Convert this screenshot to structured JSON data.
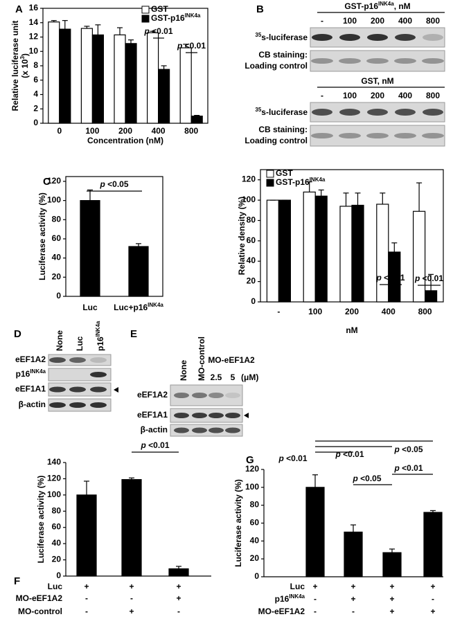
{
  "panel_labels": [
    "A",
    "B",
    "C",
    "D",
    "E",
    "F",
    "G"
  ],
  "chart_data": [
    {
      "type": "bar",
      "categories": [
        "0",
        "100",
        "200",
        "400",
        "800"
      ],
      "series": [
        {
          "name": "GST",
          "color": "#ffffff",
          "values": [
            14.1,
            13.2,
            12.3,
            12.6,
            10.5
          ],
          "errors": [
            0.2,
            0.3,
            1.0,
            0.2,
            0.5
          ]
        },
        {
          "name": "GST-p16INK4a",
          "color": "#000000",
          "values": [
            13.1,
            12.3,
            11.1,
            7.5,
            1.0
          ],
          "errors": [
            1.2,
            1.4,
            0.5,
            0.5,
            0.1
          ]
        }
      ],
      "ylim": [
        0,
        16
      ],
      "yticks": [
        0,
        2,
        4,
        6,
        8,
        10,
        12,
        14,
        16
      ],
      "y_label": [
        "Relative luciferase unit",
        "(x 103)"
      ],
      "x_label": "Concentration (nM)",
      "legend": "upper right",
      "annotations": [
        "p <0.01",
        "p <0.01"
      ]
    },
    {
      "type": "bar",
      "categories": [
        "-",
        "100",
        "200",
        "400",
        "800"
      ],
      "series": [
        {
          "name": "GST",
          "color": "#ffffff",
          "values": [
            100,
            108,
            94,
            96,
            89
          ],
          "errors": [
            0,
            10,
            13,
            11,
            28
          ]
        },
        {
          "name": "GST-p16INK4a",
          "color": "#000000",
          "values": [
            100,
            104,
            95,
            49,
            11
          ],
          "errors": [
            0,
            6,
            12,
            9,
            16
          ]
        }
      ],
      "ylim": [
        0,
        130
      ],
      "yticks": [
        0,
        20,
        40,
        60,
        80,
        100,
        120
      ],
      "y_label": [
        "Relative density (%)"
      ],
      "x_label": "nM",
      "legend": "upper left",
      "annotations": [
        "p <0.01",
        "p <0.01"
      ]
    },
    {
      "type": "bar",
      "categories": [
        "Luc",
        "Luc+p16INK4a"
      ],
      "color": "#000000",
      "values": [
        100,
        52
      ],
      "errors": [
        11,
        3
      ],
      "ylim": [
        0,
        125
      ],
      "yticks": [
        0,
        20,
        40,
        60,
        80,
        100,
        120
      ],
      "y_label": [
        "Luciferase activity (%)"
      ],
      "annotations": [
        "p <0.05"
      ]
    },
    {
      "type": "bar",
      "color": "#000000",
      "values": [
        100,
        119,
        9
      ],
      "errors": [
        17,
        2,
        3
      ],
      "ylim": [
        0,
        140
      ],
      "yticks": [
        0,
        20,
        40,
        60,
        80,
        100,
        120,
        140
      ],
      "y_label": [
        "Luciferase activity (%)"
      ],
      "annotations": [
        "p <0.01"
      ],
      "conditions": [
        {
          "label": "Luc",
          "marks": [
            "+",
            "+",
            "+"
          ]
        },
        {
          "label": "MO-eEF1A2",
          "marks": [
            "-",
            "-",
            "+"
          ]
        },
        {
          "label": "MO-control",
          "marks": [
            "-",
            "+",
            "-"
          ]
        }
      ]
    },
    {
      "type": "bar",
      "color": "#000000",
      "values": [
        100,
        50,
        27,
        72
      ],
      "errors": [
        14,
        8,
        4,
        2
      ],
      "ylim": [
        0,
        120
      ],
      "yticks": [
        0,
        20,
        40,
        60,
        80,
        100,
        120
      ],
      "y_label": [
        "Luciferase activity (%)"
      ],
      "annotations": [
        "p <0.01",
        "p <0.01",
        "p <0.05",
        "p <0.05",
        "p <0.01"
      ],
      "conditions": [
        {
          "label": "Luc",
          "marks": [
            "+",
            "+",
            "+",
            "+"
          ]
        },
        {
          "label": "p16INK4a",
          "marks": [
            "-",
            "+",
            "+",
            "-"
          ]
        },
        {
          "label": "MO-eEF1A2",
          "marks": [
            "-",
            "-",
            "+",
            "+"
          ]
        }
      ]
    }
  ],
  "blots": [
    {
      "header": "GST-p16INK4a, nM",
      "lanes": [
        "-",
        "100",
        "200",
        "400",
        "800"
      ],
      "rows": [
        "35s-luciferase",
        "CB staining:",
        "Loading control"
      ]
    },
    {
      "header": "GST, nM",
      "lanes": [
        "-",
        "100",
        "200",
        "400",
        "800"
      ],
      "rows": [
        "35s-luciferase",
        "CB staining:",
        "Loading control"
      ]
    },
    {
      "lanes": [
        "None",
        "Luc",
        "p16INK4a"
      ],
      "rows": [
        "eEF1A2",
        "p16INK4a",
        "eEF1A1",
        "β-actin"
      ]
    },
    {
      "lanes": [
        "None",
        "MO-control"
      ],
      "group": "MO-eEF1A2",
      "doses": [
        "2.5",
        "5"
      ],
      "unit": "(μM)",
      "rows": [
        "eEF1A2",
        "eEF1A1",
        "β-actin"
      ]
    }
  ]
}
